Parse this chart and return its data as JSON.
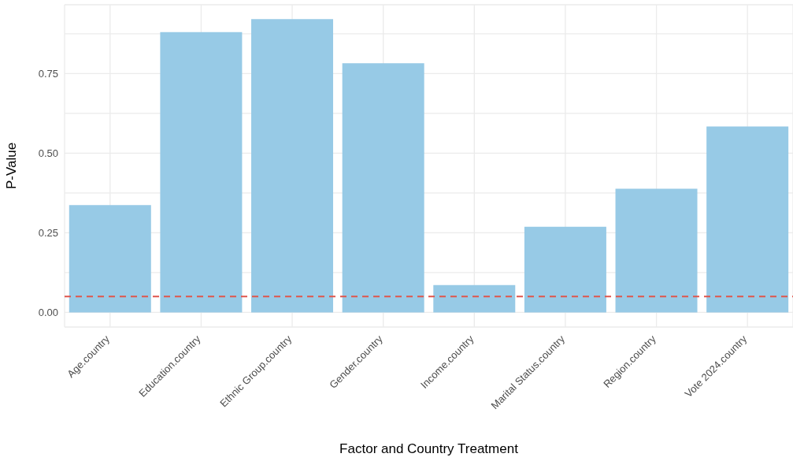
{
  "chart_data": {
    "type": "bar",
    "xlabel": "Factor and Country Treatment",
    "ylabel": "P-Value",
    "categories": [
      "Age.country",
      "Education.country",
      "Ethnic Group.country",
      "Gender.country",
      "Income.country",
      "Marital Status.country",
      "Region.country",
      "Vote 2024.country"
    ],
    "values": [
      0.337,
      0.88,
      0.921,
      0.782,
      0.086,
      0.269,
      0.388,
      0.584
    ],
    "color": "#97cae6",
    "ylim": [
      -0.046,
      0.966
    ],
    "yticks": [
      {
        "value": 0,
        "label": "0.00"
      },
      {
        "value": 0.125,
        "label": null
      },
      0.25,
      {
        "value": 0.375,
        "label": null
      },
      {
        "value": 0.5,
        "label": "0.50"
      },
      {
        "value": 0.625,
        "label": null
      },
      0.75,
      {
        "value": 0.875,
        "label": null
      }
    ],
    "ref_lines": [
      {
        "axis": "y",
        "value": 0.05,
        "label": null,
        "color": "#e0564c",
        "line_style": "dashed"
      }
    ],
    "grid": true
  }
}
